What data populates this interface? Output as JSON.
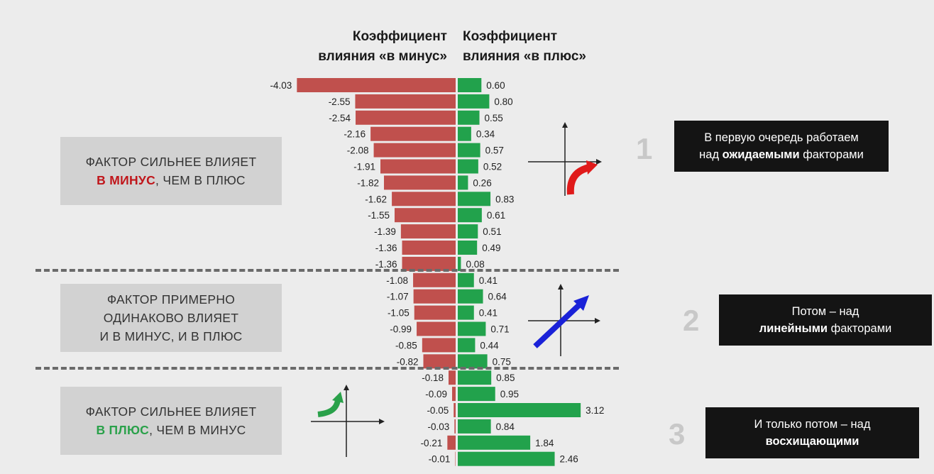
{
  "header": {
    "left_line1": "Коэффициент",
    "left_line2": "влияния «в минус»",
    "right_line1": "Коэффициент",
    "right_line2": "влияния «в плюс»"
  },
  "groups": [
    {
      "line1": "ФАКТОР СИЛЬНЕЕ ВЛИЯЕТ",
      "line2_highlight": "В МИНУС",
      "line2_rest": ", ЧЕМ В ПЛЮС"
    },
    {
      "line1": "ФАКТОР ПРИМЕРНО",
      "line2": "ОДИНАКОВО ВЛИЯЕТ",
      "line3": "И В МИНУС, И В ПЛЮС"
    },
    {
      "line1": "ФАКТОР СИЛЬНЕЕ ВЛИЯЕТ",
      "line2_highlight": "В ПЛЮС",
      "line2_rest": ", ЧЕМ В МИНУС"
    }
  ],
  "steps": [
    {
      "number": "1",
      "line1": "В первую очередь работаем",
      "line2_pre": "над ",
      "line2_bold": "ожидаемыми",
      "line2_post": " факторами"
    },
    {
      "number": "2",
      "line1": "Потом – над",
      "line2_pre": "",
      "line2_bold": "линейными",
      "line2_post": " факторами"
    },
    {
      "number": "3",
      "line1": "И только потом – над",
      "line2_pre": "",
      "line2_bold": "восхищающими",
      "line2_post": ""
    }
  ],
  "icons": [
    "curved-arrow-up-red-icon",
    "straight-arrow-up-blue-icon",
    "curved-arrow-up-green-icon"
  ],
  "colors": {
    "negative_bar": "#c0504d",
    "positive_bar": "#22a24c",
    "highlight_red": "#c0161b",
    "highlight_green": "#2aa14a",
    "arrow_blue": "#1a22d8"
  },
  "chart_data": {
    "type": "bar",
    "orientation": "horizontal-diverging",
    "rows": 24,
    "negative_labels": [
      "-4.03",
      "-2.55",
      "-2.54",
      "-2.16",
      "-2.08",
      "-1.91",
      "-1.82",
      "-1.62",
      "-1.55",
      "-1.39",
      "-1.36",
      "-1.36",
      "-1.08",
      "-1.07",
      "-1.05",
      "-0.99",
      "-0.85",
      "-0.82",
      "-0.18",
      "-0.09",
      "-0.05",
      "-0.03",
      "-0.21",
      "-0.01"
    ],
    "positive_labels": [
      "0.60",
      "0.80",
      "0.55",
      "0.34",
      "0.57",
      "0.52",
      "0.26",
      "0.83",
      "0.61",
      "0.51",
      "0.49",
      "0.08",
      "0.41",
      "0.64",
      "0.41",
      "0.71",
      "0.44",
      "0.75",
      "0.85",
      "0.95",
      "3.12",
      "0.84",
      "1.84",
      "2.46"
    ],
    "series": [
      {
        "values": [
          -4.03,
          -2.55,
          -2.54,
          -2.16,
          -2.08,
          -1.91,
          -1.82,
          -1.62,
          -1.55,
          -1.39,
          -1.36,
          -1.36,
          -1.08,
          -1.07,
          -1.05,
          -0.99,
          -0.85,
          -0.82,
          -0.18,
          -0.09,
          -0.05,
          -0.03,
          -0.21,
          -0.01
        ]
      },
      {
        "values": [
          0.6,
          0.8,
          0.55,
          0.34,
          0.57,
          0.52,
          0.26,
          0.83,
          0.61,
          0.51,
          0.49,
          0.08,
          0.41,
          0.64,
          0.41,
          0.71,
          0.44,
          0.75,
          0.85,
          0.95,
          3.12,
          0.84,
          1.84,
          2.46
        ]
      }
    ],
    "group_breaks_after_row": [
      12,
      18
    ]
  }
}
